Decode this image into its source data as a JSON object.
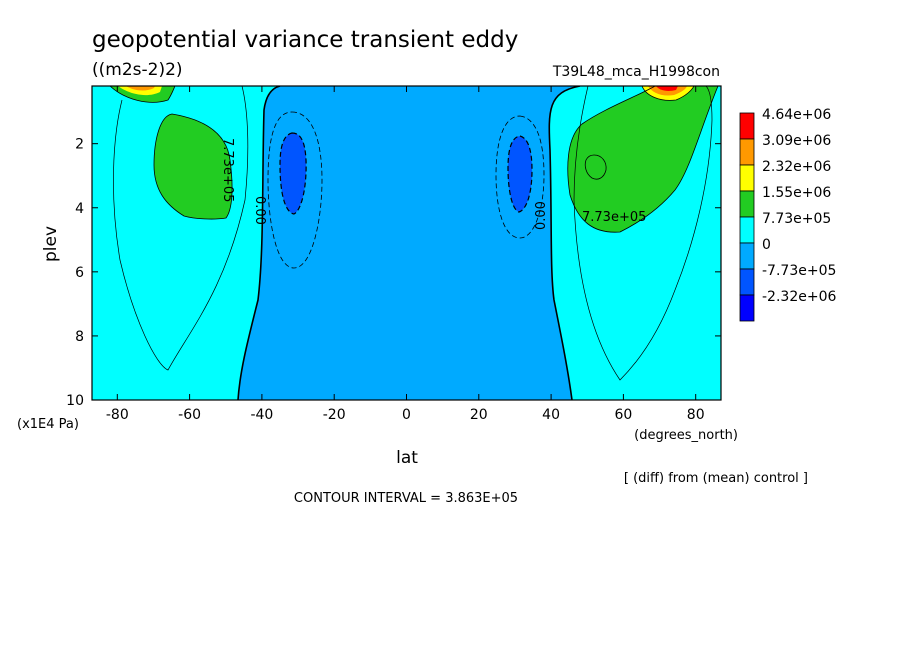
{
  "chart_data": {
    "type": "heatmap",
    "title": "geopotential variance transient eddy",
    "units": "((m2s-2)2)",
    "run_label": "T39L48_mca_H1998con",
    "xlabel": "lat",
    "xunits": "(degrees_north)",
    "ylabel": "plev",
    "yunits": "(x1E4 Pa)",
    "xlim": [
      -87,
      87
    ],
    "ylim": [
      10,
      0.2
    ],
    "x_ticks": [
      -80,
      -60,
      -40,
      -20,
      0,
      20,
      40,
      60,
      80
    ],
    "y_ticks": [
      2,
      4,
      6,
      8,
      10
    ],
    "contour_interval_text": "CONTOUR INTERVAL = 3.863E+05",
    "diff_note": "[ (diff) from (mean) control ]",
    "contour_labels": [
      "7.73e+05",
      "0.00",
      "0.00",
      "7.73e+05"
    ],
    "legend": {
      "labels": [
        "4.64e+06",
        "3.09e+06",
        "2.32e+06",
        "1.55e+06",
        "7.73e+05",
        "0",
        "-7.73e+05",
        "-2.32e+06"
      ],
      "colors": [
        "#ff0000",
        "#ff9900",
        "#ffff00",
        "#22cc22",
        "#00ffff",
        "#00aaff",
        "#0055ff",
        "#0000ff"
      ]
    },
    "colors": {
      "below_zero": "#00aaff",
      "zero_to_7_73e5": "#00ffff",
      "7_73e5_to_1_55e6": "#22cc22",
      "below_minus_7_73e5": "#0055ff",
      "high_band_yellow": "#ffff00",
      "high_band_orange": "#ff9900",
      "high_band_red": "#ff0000"
    }
  }
}
